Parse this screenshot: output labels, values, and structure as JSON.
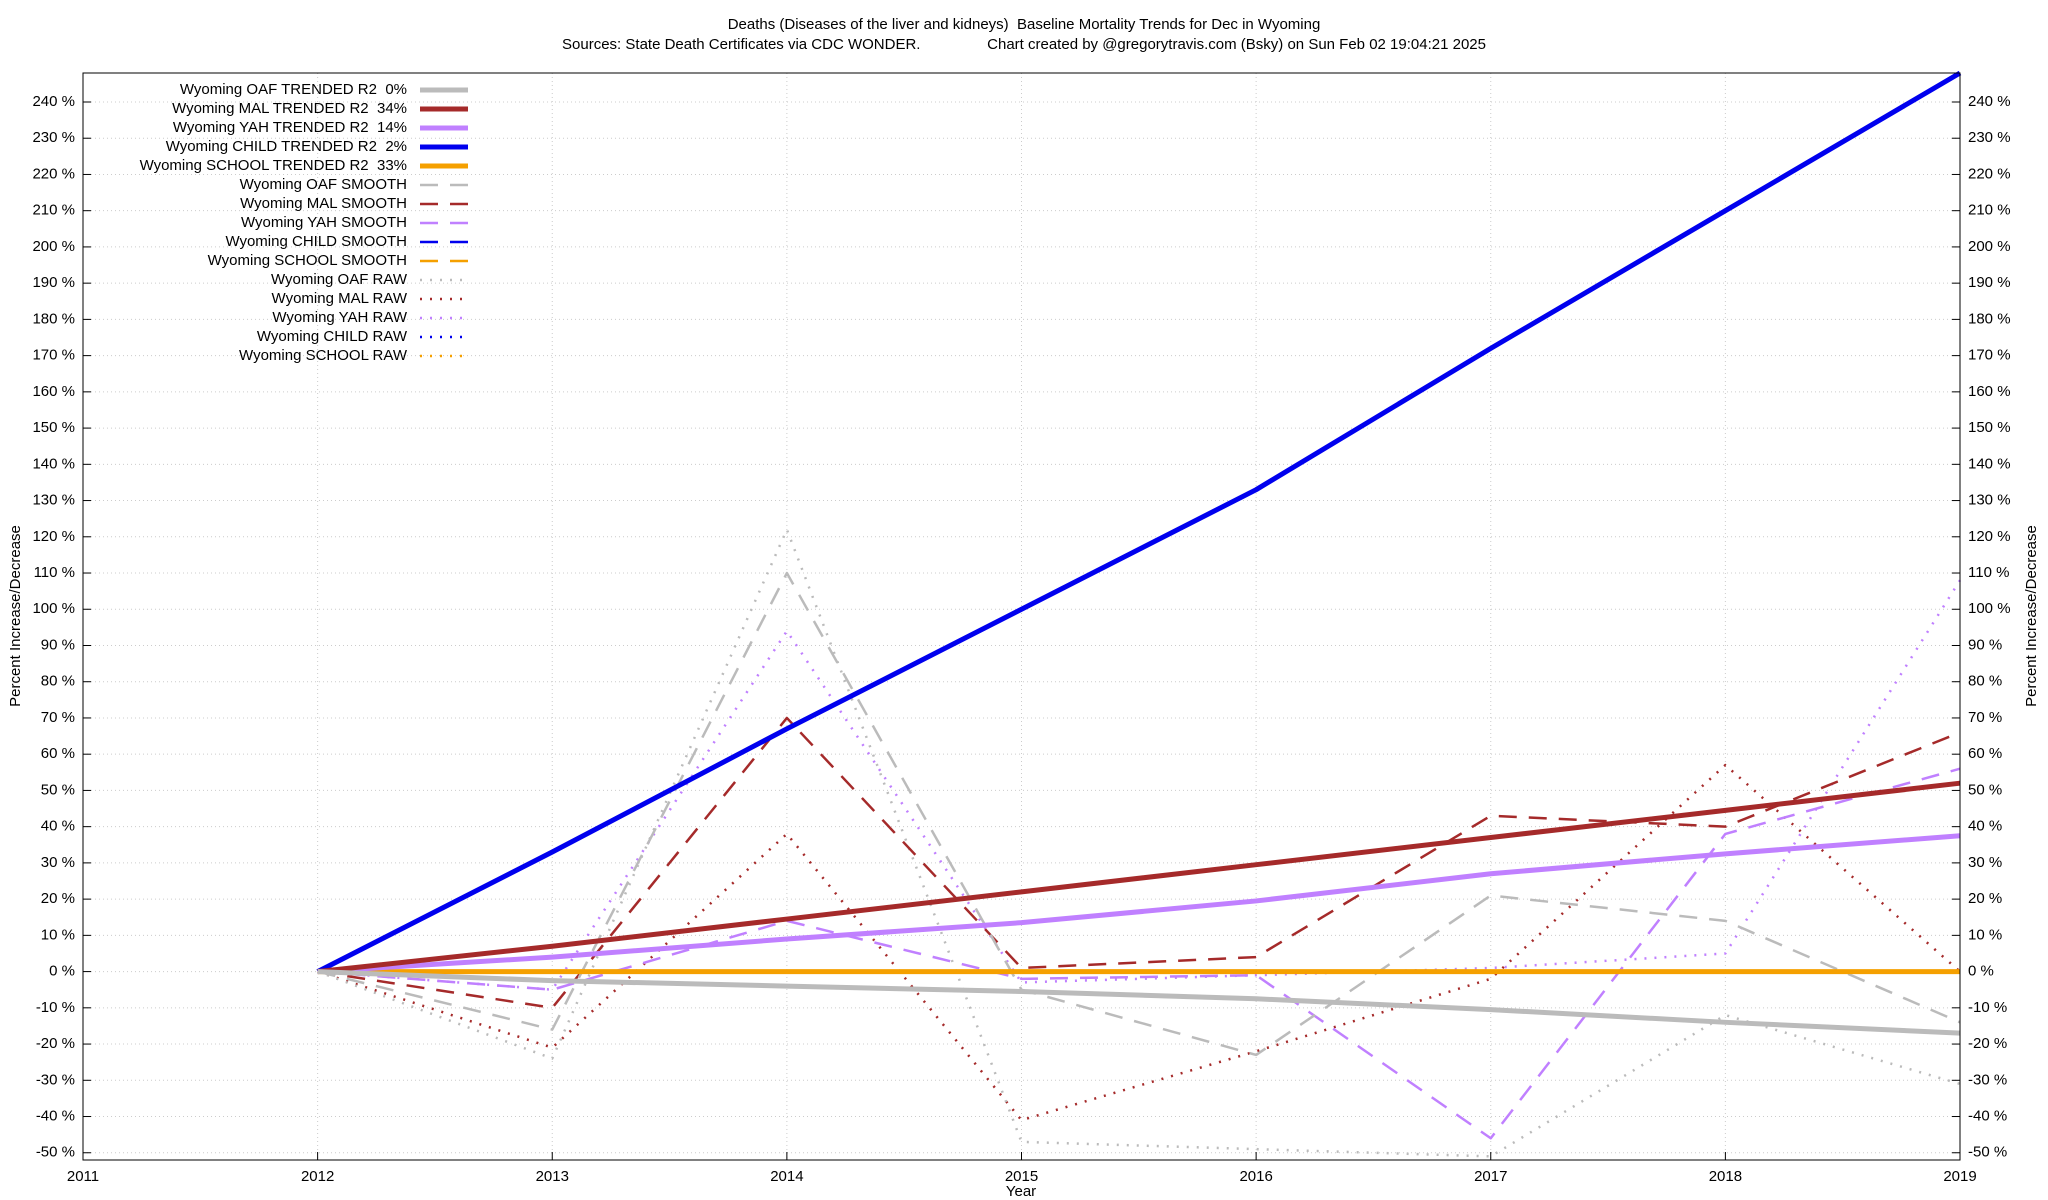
{
  "chart_data": {
    "type": "line",
    "title": "Deaths (Diseases of the liver and kidneys)  Baseline Mortality Trends for Dec in Wyoming",
    "subtitle": "Sources: State Death Certificates via CDC WONDER.                Chart created by @gregorytravis.com (Bsky) on Sun Feb 02 19:04:21 2025",
    "xlabel": "Year",
    "ylabel": "Percent Increase/Decrease",
    "y2label": "Percent Increase/Decrease",
    "x": [
      2012,
      2013,
      2014,
      2015,
      2016,
      2017,
      2018,
      2019
    ],
    "xlim": [
      2011,
      2019
    ],
    "xticks": [
      2011,
      2012,
      2013,
      2014,
      2015,
      2016,
      2017,
      2018,
      2019
    ],
    "ylim": [
      -52,
      248
    ],
    "yticks": [
      {
        "value": -50,
        "label": "-50 %"
      },
      {
        "value": -40,
        "label": "-40 %"
      },
      {
        "value": -30,
        "label": "-30 %"
      },
      {
        "value": -20,
        "label": "-20 %"
      },
      {
        "value": -10,
        "label": "-10 %"
      },
      {
        "value": 0,
        "label": "0 %"
      },
      {
        "value": 10,
        "label": "10 %"
      },
      {
        "value": 20,
        "label": "20 %"
      },
      {
        "value": 30,
        "label": "30 %"
      },
      {
        "value": 40,
        "label": "40 %"
      },
      {
        "value": 50,
        "label": "50 %"
      },
      {
        "value": 60,
        "label": "60 %"
      },
      {
        "value": 70,
        "label": "70 %"
      },
      {
        "value": 80,
        "label": "80 %"
      },
      {
        "value": 90,
        "label": "90 %"
      },
      {
        "value": 100,
        "label": "100 %"
      },
      {
        "value": 110,
        "label": "110 %"
      },
      {
        "value": 120,
        "label": "120 %"
      },
      {
        "value": 130,
        "label": "130 %"
      },
      {
        "value": 140,
        "label": "140 %"
      },
      {
        "value": 150,
        "label": "150 %"
      },
      {
        "value": 160,
        "label": "160 %"
      },
      {
        "value": 170,
        "label": "170 %"
      },
      {
        "value": 180,
        "label": "180 %"
      },
      {
        "value": 190,
        "label": "190 %"
      },
      {
        "value": 200,
        "label": "200 %"
      },
      {
        "value": 210,
        "label": "210 %"
      },
      {
        "value": 220,
        "label": "220 %"
      },
      {
        "value": 230,
        "label": "230 %"
      },
      {
        "value": 240,
        "label": "240 %"
      }
    ],
    "grid": true,
    "legend": "top-left",
    "series": [
      {
        "name": "Wyoming OAF TRENDED R2  0%",
        "color": "#bbbbbb",
        "dash": "solid",
        "values": [
          0,
          -2.5,
          -4,
          -5.5,
          -7.5,
          -10.5,
          -14,
          -17
        ]
      },
      {
        "name": "Wyoming MAL TRENDED R2  34%",
        "color": "#a52a2a",
        "dash": "solid",
        "values": [
          0,
          7,
          14.5,
          22,
          29.5,
          37,
          44.5,
          52
        ]
      },
      {
        "name": "Wyoming YAH TRENDED R2  14%",
        "color": "#c080ff",
        "dash": "solid",
        "values": [
          0,
          4,
          9,
          13.5,
          19.5,
          27,
          32.5,
          37.5
        ]
      },
      {
        "name": "Wyoming CHILD TRENDED R2  2%",
        "color": "#0000ee",
        "dash": "solid",
        "values": [
          0,
          33,
          67,
          100,
          133,
          172,
          210,
          248
        ]
      },
      {
        "name": "Wyoming SCHOOL TRENDED R2  33%",
        "color": "#f5a000",
        "dash": "solid",
        "values": [
          0,
          0,
          0,
          0,
          0,
          0,
          0,
          0
        ]
      },
      {
        "name": "Wyoming OAF SMOOTH",
        "color": "#bbbbbb",
        "dash": "dashed",
        "values": [
          0,
          -16,
          110,
          -5,
          -23,
          21,
          14,
          -14
        ]
      },
      {
        "name": "Wyoming MAL SMOOTH",
        "color": "#a52a2a",
        "dash": "dashed",
        "values": [
          0,
          -10,
          70,
          1,
          4,
          43,
          40,
          66
        ]
      },
      {
        "name": "Wyoming YAH SMOOTH",
        "color": "#c080ff",
        "dash": "dashed",
        "values": [
          0,
          -5,
          14,
          -2,
          -1,
          -46,
          38,
          56
        ]
      },
      {
        "name": "Wyoming CHILD SMOOTH",
        "color": "#0000ee",
        "dash": "dashed",
        "values": [
          0,
          0,
          0,
          0,
          0,
          0,
          0,
          0
        ]
      },
      {
        "name": "Wyoming SCHOOL SMOOTH",
        "color": "#f5a000",
        "dash": "dashed",
        "values": [
          0,
          0,
          0,
          0,
          0,
          0,
          0,
          0
        ]
      },
      {
        "name": "Wyoming OAF RAW",
        "color": "#bbbbbb",
        "dash": "dotted",
        "values": [
          0,
          -24,
          122,
          -47,
          -49,
          -51,
          -12,
          -31
        ]
      },
      {
        "name": "Wyoming MAL RAW",
        "color": "#a52a2a",
        "dash": "dotted",
        "values": [
          0,
          -21,
          38,
          -41,
          -22,
          -2,
          57,
          0
        ]
      },
      {
        "name": "Wyoming YAH RAW",
        "color": "#c080ff",
        "dash": "dotted",
        "values": [
          0,
          -5,
          94,
          -3,
          -1,
          1,
          5,
          108
        ]
      },
      {
        "name": "Wyoming CHILD RAW",
        "color": "#0000ee",
        "dash": "dotted",
        "values": [
          0,
          0,
          0,
          0,
          0,
          0,
          0,
          0
        ]
      },
      {
        "name": "Wyoming SCHOOL RAW",
        "color": "#f5a000",
        "dash": "dotted",
        "values": [
          0,
          0,
          0,
          0,
          0,
          0,
          0,
          0
        ]
      }
    ]
  }
}
